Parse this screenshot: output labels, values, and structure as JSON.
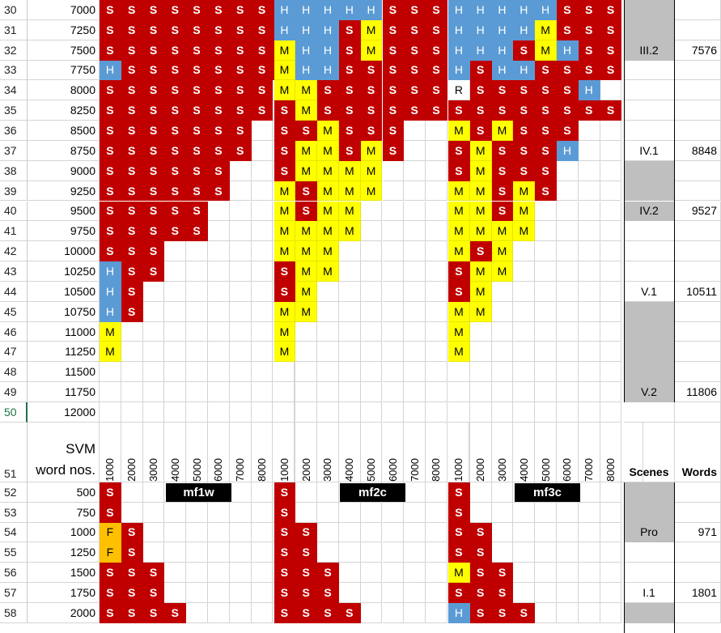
{
  "sheet": {
    "rows": [
      {
        "num": "30",
        "wn": "7000",
        "c": "SSSSSSSSS|HHHHHSSS|HHHHHSSS",
        "scene": "",
        "gray": true,
        "words": ""
      },
      {
        "num": "31",
        "wn": "7250",
        "c": "SSSSSSSSS|HHHSMSSS|HHHHMSSS",
        "scene": "",
        "gray": true,
        "words": ""
      },
      {
        "num": "32",
        "wn": "7500",
        "c": "SSSSSSSSS|MHHSMSSS|HHHSMHSS",
        "scene": "III.2",
        "gray": true,
        "words": "7576"
      },
      {
        "num": "33",
        "wn": "7750",
        "c": "HSSSSSSSS|MHHSSSSS|HSHHSSSS",
        "scene": "",
        "gray": false,
        "words": ""
      },
      {
        "num": "34",
        "wn": "8000",
        "c": "SSSSSSSS.|MMSSSSSS|RSSSSSH.",
        "scene": "",
        "gray": false,
        "words": ""
      },
      {
        "num": "35",
        "wn": "8250",
        "c": "SSSSSSSS.|SMSSSSSS|SSSSSSSS",
        "scene": "",
        "gray": false,
        "words": ""
      },
      {
        "num": "36",
        "wn": "8500",
        "c": "SSSSSSS..|SSMSSS..|MSMSSS..",
        "scene": "",
        "gray": false,
        "words": ""
      },
      {
        "num": "37",
        "wn": "8750",
        "c": "SSSSSSS..|SMMSMS..|SMSSSH..",
        "scene": "IV.1",
        "gray": false,
        "words": "8848"
      },
      {
        "num": "38",
        "wn": "9000",
        "c": "SSSSSS...|SMMMM...|SMSSS...",
        "scene": "",
        "gray": true,
        "words": ""
      },
      {
        "num": "39",
        "wn": "9250",
        "c": "SSSSSS...|MSMMM...|MMSMS...",
        "scene": "",
        "gray": true,
        "words": ""
      },
      {
        "num": "40",
        "wn": "9500",
        "c": "SSSSS....|MSMM....|MMSM....",
        "scene": "IV.2",
        "gray": true,
        "words": "9527"
      },
      {
        "num": "41",
        "wn": "9750",
        "c": "SSSSS....|MMMM....|MMMM....",
        "scene": "",
        "gray": false,
        "words": ""
      },
      {
        "num": "42",
        "wn": "10000",
        "c": "SSS......|MMM.....|MSM.....",
        "scene": "",
        "gray": false,
        "words": ""
      },
      {
        "num": "43",
        "wn": "10250",
        "c": "HSS......|SMM.....|SMM.....",
        "scene": "",
        "gray": false,
        "words": ""
      },
      {
        "num": "44",
        "wn": "10500",
        "c": "HS.......|SM......|SM......",
        "scene": "V.1",
        "gray": false,
        "words": "10511"
      },
      {
        "num": "45",
        "wn": "10750",
        "c": "HS.......|MM......|MM......",
        "scene": "",
        "gray": true,
        "words": ""
      },
      {
        "num": "46",
        "wn": "11000",
        "c": "M........|M.......|M.......",
        "scene": "",
        "gray": true,
        "words": ""
      },
      {
        "num": "47",
        "wn": "11250",
        "c": "M........|M.......|M.......",
        "scene": "",
        "gray": true,
        "words": ""
      },
      {
        "num": "48",
        "wn": "11500",
        "c": ".........|........|........",
        "scene": "",
        "gray": true,
        "words": ""
      },
      {
        "num": "49",
        "wn": "11750",
        "c": ".........|........|........",
        "scene": "V.2",
        "gray": true,
        "words": "11806"
      },
      {
        "num": "50",
        "wn": "12000",
        "c": ".........|........|........",
        "scene": "",
        "gray": false,
        "words": "",
        "selected": true
      }
    ],
    "header_row": {
      "num": "51",
      "label_line1": "SVM",
      "label_line2": "word nos.",
      "col_labels": [
        "1000",
        "2000",
        "3000",
        "4000",
        "5000",
        "6000",
        "7000",
        "8000"
      ],
      "scenes": "Scenes",
      "words": "Words"
    },
    "rows_bottom": [
      {
        "num": "52",
        "wn": "500",
        "c": "S........|S.......|S.......",
        "scene": "",
        "gray": true,
        "words": ""
      },
      {
        "num": "53",
        "wn": "750",
        "c": "S........|S.......|S.......",
        "scene": "",
        "gray": true,
        "words": ""
      },
      {
        "num": "54",
        "wn": "1000",
        "c": "FS.......|SS......|SS......",
        "scene": "Pro",
        "gray": true,
        "words": "971"
      },
      {
        "num": "55",
        "wn": "1250",
        "c": "FS.......|SS......|SS......",
        "scene": "",
        "gray": false,
        "words": ""
      },
      {
        "num": "56",
        "wn": "1500",
        "c": "SSS......|SSS.....|MSS.....",
        "scene": "",
        "gray": false,
        "words": ""
      },
      {
        "num": "57",
        "wn": "1750",
        "c": "SSS......|SSS.....|SSS.....",
        "scene": "I.1",
        "gray": false,
        "words": "1801"
      },
      {
        "num": "58",
        "wn": "2000",
        "c": "SSSS.....|SSSS....|HSSS....",
        "scene": "",
        "gray": true,
        "words": ""
      }
    ],
    "group_labels": [
      "mf1w",
      "mf2c",
      "mf3c"
    ],
    "colors": {
      "S": "#c00000",
      "M": "#ffff00",
      "H": "#5b9bd5",
      "F": "#ffc000",
      "gray": "#bfbfbf"
    }
  }
}
